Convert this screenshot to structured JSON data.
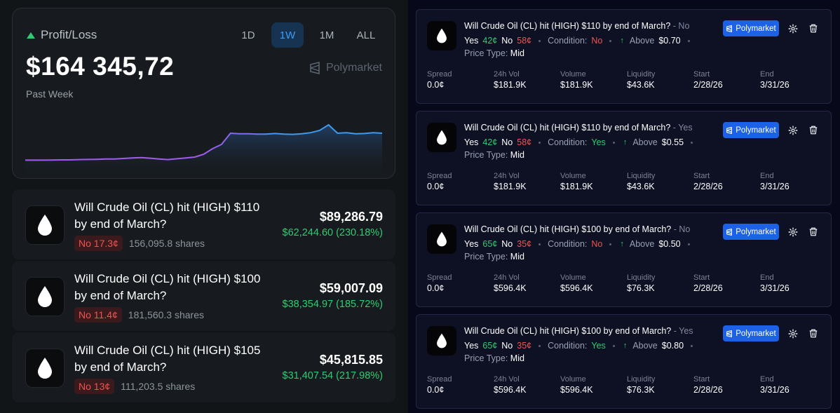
{
  "pl": {
    "title": "Profit/Loss",
    "ranges": [
      "1D",
      "1W",
      "1M",
      "ALL"
    ],
    "active_range": "1W",
    "value": "$164 345,72",
    "period": "Past Week",
    "brand": "Polymarket",
    "colors": {
      "up": "#2ecc71",
      "line_blue": "#3d9af0",
      "line_purple": "#a15bf0"
    }
  },
  "chart_data": {
    "type": "line",
    "title": "Profit/Loss — Past Week",
    "series": [
      {
        "name": "Profit/Loss",
        "values": [
          0.04,
          0.04,
          0.04,
          0.045,
          0.05,
          0.05,
          0.06,
          0.065,
          0.07,
          0.08,
          0.08,
          0.1,
          0.12,
          0.13,
          0.11,
          0.08,
          0.06,
          0.09,
          0.12,
          0.15,
          0.25,
          0.45,
          0.6,
          1.0,
          0.98,
          0.98,
          0.97,
          0.97,
          0.99,
          0.97,
          0.96,
          0.98,
          1.02,
          1.1,
          1.3,
          1.0,
          1.02,
          0.98,
          0.99,
          1.02,
          1.0
        ]
      }
    ],
    "xlabel": "",
    "ylabel": "",
    "ylim": [
      0,
      1.5
    ],
    "grid": false
  },
  "positions": [
    {
      "title": "Will Crude Oil (CL) hit (HIGH) $110 by end of March?",
      "badge": "No 17.3¢",
      "shares": "156,095.8 shares",
      "value": "$89,286.79",
      "gain": "$62,244.60 (230.18%)"
    },
    {
      "title": "Will Crude Oil (CL) hit (HIGH) $100 by end of March?",
      "badge": "No 11.4¢",
      "shares": "181,560.3 shares",
      "value": "$59,007.09",
      "gain": "$38,354.97 (185.72%)"
    },
    {
      "title": "Will Crude Oil (CL) hit (HIGH) $105 by end of March?",
      "badge": "No 13¢",
      "shares": "111,203.5 shares",
      "value": "$45,815.85",
      "gain": "$31,407.54 (217.98%)"
    }
  ],
  "cards": [
    {
      "title": "Will Crude Oil (CL) hit (HIGH) $110 by end of March?",
      "side": "- No",
      "yes_label": "Yes",
      "yes": "42¢",
      "no_label": "No",
      "no": "58¢",
      "condition_label": "Condition:",
      "condition": "No",
      "direction": "Above",
      "threshold": "$0.70",
      "price_type_label": "Price Type:",
      "price_type": "Mid",
      "brand": "Polymarket",
      "stats": [
        {
          "label": "Spread",
          "value": "0.0¢"
        },
        {
          "label": "24h Vol",
          "value": "$181.9K"
        },
        {
          "label": "Volume",
          "value": "$181.9K"
        },
        {
          "label": "Liquidity",
          "value": "$43.6K"
        },
        {
          "label": "Start",
          "value": "2/28/26"
        },
        {
          "label": "End",
          "value": "3/31/26"
        }
      ]
    },
    {
      "title": "Will Crude Oil (CL) hit (HIGH) $110 by end of March?",
      "side": "- Yes",
      "yes_label": "Yes",
      "yes": "42¢",
      "no_label": "No",
      "no": "58¢",
      "condition_label": "Condition:",
      "condition": "Yes",
      "direction": "Above",
      "threshold": "$0.55",
      "price_type_label": "Price Type:",
      "price_type": "Mid",
      "brand": "Polymarket",
      "stats": [
        {
          "label": "Spread",
          "value": "0.0¢"
        },
        {
          "label": "24h Vol",
          "value": "$181.9K"
        },
        {
          "label": "Volume",
          "value": "$181.9K"
        },
        {
          "label": "Liquidity",
          "value": "$43.6K"
        },
        {
          "label": "Start",
          "value": "2/28/26"
        },
        {
          "label": "End",
          "value": "3/31/26"
        }
      ]
    },
    {
      "title": "Will Crude Oil (CL) hit (HIGH) $100 by end of March?",
      "side": "- No",
      "yes_label": "Yes",
      "yes": "65¢",
      "no_label": "No",
      "no": "35¢",
      "condition_label": "Condition:",
      "condition": "No",
      "direction": "Above",
      "threshold": "$0.50",
      "price_type_label": "Price Type:",
      "price_type": "Mid",
      "brand": "Polymarket",
      "stats": [
        {
          "label": "Spread",
          "value": "0.0¢"
        },
        {
          "label": "24h Vol",
          "value": "$596.4K"
        },
        {
          "label": "Volume",
          "value": "$596.4K"
        },
        {
          "label": "Liquidity",
          "value": "$76.3K"
        },
        {
          "label": "Start",
          "value": "2/28/26"
        },
        {
          "label": "End",
          "value": "3/31/26"
        }
      ]
    },
    {
      "title": "Will Crude Oil (CL) hit (HIGH) $100 by end of March?",
      "side": "- Yes",
      "yes_label": "Yes",
      "yes": "65¢",
      "no_label": "No",
      "no": "35¢",
      "condition_label": "Condition:",
      "condition": "Yes",
      "direction": "Above",
      "threshold": "$0.80",
      "price_type_label": "Price Type:",
      "price_type": "Mid",
      "brand": "Polymarket",
      "stats": [
        {
          "label": "Spread",
          "value": "0.0¢"
        },
        {
          "label": "24h Vol",
          "value": "$596.4K"
        },
        {
          "label": "Volume",
          "value": "$596.4K"
        },
        {
          "label": "Liquidity",
          "value": "$76.3K"
        },
        {
          "label": "Start",
          "value": "2/28/26"
        },
        {
          "label": "End",
          "value": "3/31/26"
        }
      ]
    }
  ]
}
